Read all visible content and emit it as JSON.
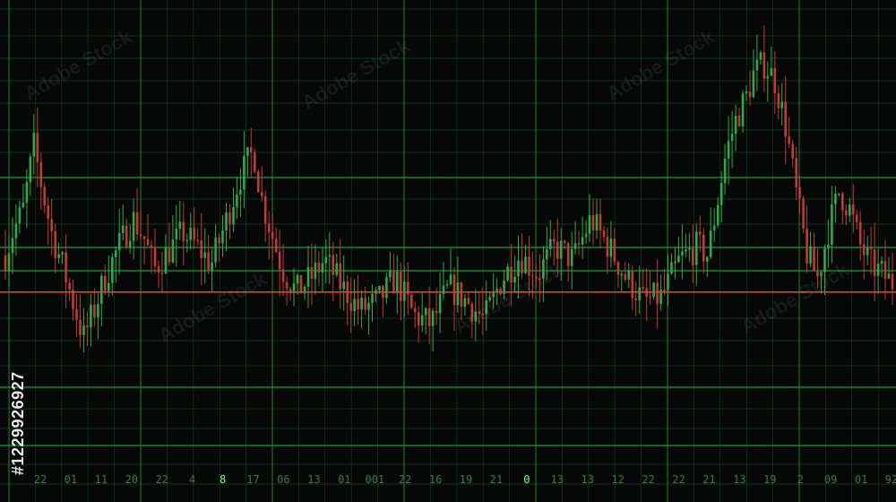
{
  "chart_data": {
    "type": "candlestick",
    "background": "#050806",
    "grid": true,
    "grid_color": "#1f9a35",
    "up_color": "#2ea84a",
    "down_color": "#c23a30",
    "reference_line_color": "#d6423a",
    "ylim": [
      0,
      100
    ],
    "reference_value": 42,
    "x_tick_labels": [
      "22",
      "01",
      "11",
      "20",
      "22",
      "4",
      "8",
      "17",
      "06",
      "13",
      "01",
      "001",
      "22",
      "16",
      "19",
      "21",
      "0",
      "13",
      "13",
      "12",
      "22",
      "22",
      "21",
      "13",
      "19",
      "2",
      "09",
      "01",
      "92"
    ],
    "series_points": [
      [
        0,
        50
      ],
      [
        2,
        55
      ],
      [
        5,
        60
      ],
      [
        8,
        74
      ],
      [
        10,
        66
      ],
      [
        13,
        55
      ],
      [
        16,
        48
      ],
      [
        19,
        40
      ],
      [
        22,
        32
      ],
      [
        25,
        38
      ],
      [
        28,
        45
      ],
      [
        32,
        52
      ],
      [
        36,
        58
      ],
      [
        39,
        54
      ],
      [
        42,
        47
      ],
      [
        46,
        51
      ],
      [
        50,
        55
      ],
      [
        54,
        52
      ],
      [
        58,
        48
      ],
      [
        62,
        57
      ],
      [
        66,
        67
      ],
      [
        70,
        73
      ],
      [
        72,
        63
      ],
      [
        75,
        55
      ],
      [
        78,
        47
      ],
      [
        82,
        42
      ],
      [
        86,
        45
      ],
      [
        90,
        49
      ],
      [
        95,
        43
      ],
      [
        100,
        38
      ],
      [
        105,
        40
      ],
      [
        110,
        45
      ],
      [
        115,
        37
      ],
      [
        120,
        35
      ],
      [
        125,
        43
      ],
      [
        130,
        40
      ],
      [
        135,
        36
      ],
      [
        140,
        45
      ],
      [
        145,
        50
      ],
      [
        150,
        46
      ],
      [
        155,
        52
      ],
      [
        160,
        49
      ],
      [
        165,
        58
      ],
      [
        170,
        52
      ],
      [
        175,
        45
      ],
      [
        180,
        40
      ],
      [
        185,
        41
      ],
      [
        190,
        49
      ],
      [
        195,
        52
      ],
      [
        198,
        50
      ],
      [
        203,
        72
      ],
      [
        206,
        80
      ],
      [
        209,
        85
      ],
      [
        211,
        90
      ],
      [
        214,
        92
      ],
      [
        217,
        88
      ],
      [
        220,
        78
      ],
      [
        223,
        63
      ],
      [
        226,
        50
      ],
      [
        229,
        45
      ],
      [
        232,
        56
      ],
      [
        235,
        64
      ],
      [
        238,
        60
      ],
      [
        241,
        52
      ],
      [
        244,
        48
      ],
      [
        247,
        46
      ],
      [
        250,
        44
      ]
    ]
  },
  "watermark": {
    "text": "Adobe Stock"
  },
  "stock_id": {
    "text": "#1229926927"
  }
}
